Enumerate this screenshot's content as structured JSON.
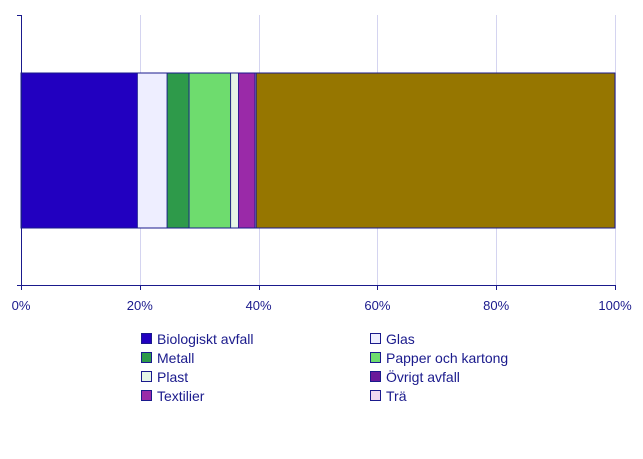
{
  "chart_data": {
    "type": "bar",
    "orientation": "horizontal",
    "stacked": true,
    "percent": true,
    "categories": [
      ""
    ],
    "series": [
      {
        "name": "Biologiskt avfall",
        "values": [
          19.6
        ],
        "color": "#2200c0"
      },
      {
        "name": "Glas",
        "values": [
          5.0
        ],
        "color": "#eeeeff"
      },
      {
        "name": "Metall",
        "values": [
          3.7
        ],
        "color": "#2e9a4a"
      },
      {
        "name": "Papper och kartong",
        "values": [
          7.0
        ],
        "color": "#6edc6e"
      },
      {
        "name": "Plast",
        "values": [
          1.3
        ],
        "color": "#e6f6e6"
      },
      {
        "name": "Övrigt avfall",
        "values": [
          0.0
        ],
        "color": "#6a1a9a"
      },
      {
        "name": "Textilier",
        "values": [
          2.8
        ],
        "color": "#9a2aa8"
      },
      {
        "name": "Trä",
        "values": [
          0.2
        ],
        "color": "#f0d8f0"
      },
      {
        "name": "",
        "values": [
          60.4
        ],
        "color": "#967600"
      }
    ],
    "xlim": [
      0,
      100
    ],
    "xticks": [
      0,
      20,
      40,
      60,
      80,
      100
    ],
    "xtick_labels": [
      "0%",
      "20%",
      "40%",
      "60%",
      "80%",
      "100%"
    ],
    "grid": true,
    "legend_position": "bottom",
    "title": "",
    "xlabel": "",
    "ylabel": ""
  },
  "legend": {
    "items": [
      {
        "label": "Biologiskt avfall",
        "color": "#2200c0"
      },
      {
        "label": "Glas",
        "color": "#eeeeff"
      },
      {
        "label": "Metall",
        "color": "#2e9a4a"
      },
      {
        "label": "Papper och kartong",
        "color": "#6edc6e"
      },
      {
        "label": "Plast",
        "color": "#e6f6e6"
      },
      {
        "label": "Övrigt avfall",
        "color": "#6a1a9a"
      },
      {
        "label": "Textilier",
        "color": "#9a2aa8"
      },
      {
        "label": "Trä",
        "color": "#f0d8f0"
      }
    ]
  },
  "colors": {
    "grid": "#d4d4f0",
    "axis": "#1a1a8c",
    "text": "#1a1a8c"
  }
}
